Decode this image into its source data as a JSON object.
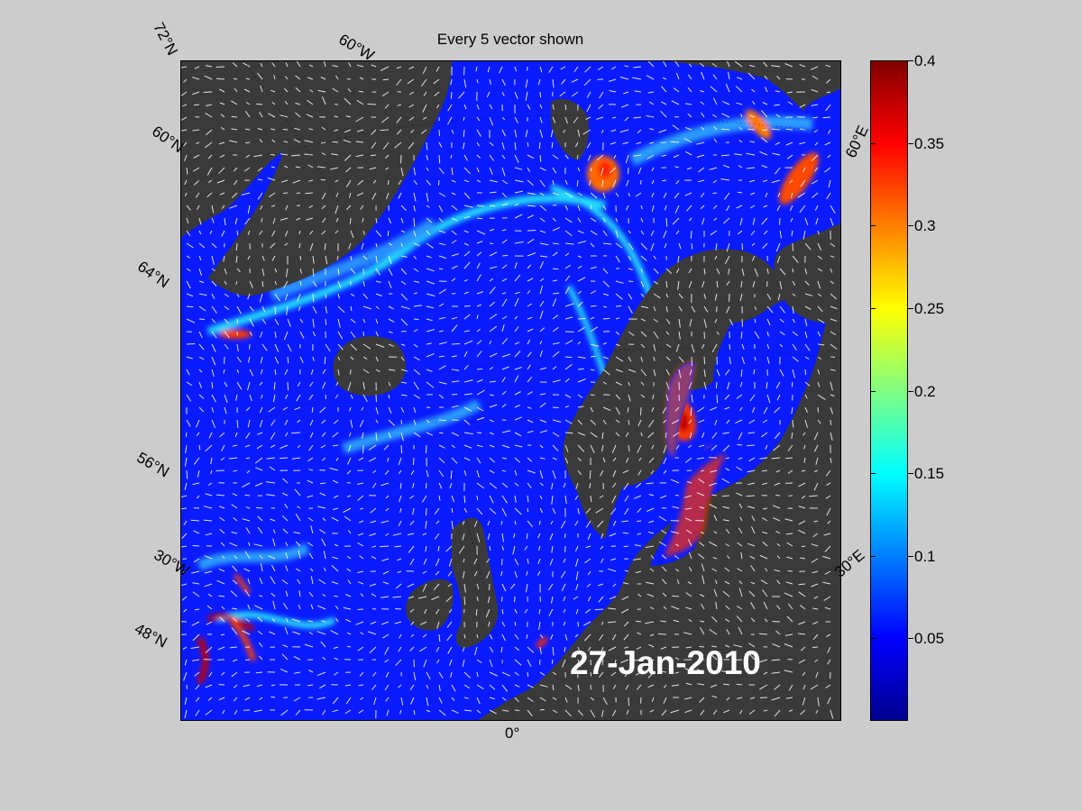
{
  "figure": {
    "title": "Every 5 vector shown",
    "date": "27-Jan-2010",
    "grid_labels": {
      "lat_72": "72°N",
      "lon_60w": "60°W",
      "lat_60": "60°N",
      "lat_64": "64°N",
      "lat_56": "56°N",
      "lon_30w": "30°W",
      "lat_48": "48°N",
      "lon_0": "0°",
      "lon_30e": "30°E",
      "lon_60e": "60°E"
    }
  },
  "colorbar": {
    "colormap": "jet",
    "min": 0,
    "max": 0.4,
    "ticks": [
      "0.4",
      "0.35",
      "0.3",
      "0.25",
      "0.2",
      "0.15",
      "0.1",
      "0.05"
    ]
  },
  "colors": {
    "background": "#cccccc",
    "land": "#3a3a3a",
    "ocean_low": "#0a1cff",
    "vectors": "#ffffff"
  }
}
